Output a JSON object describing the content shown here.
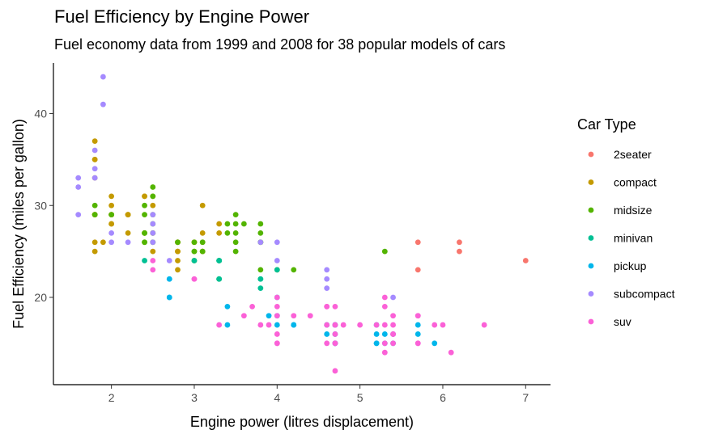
{
  "chart_data": {
    "type": "scatter",
    "title": "Fuel Efficiency by Engine Power",
    "subtitle": "Fuel economy data from 1999 and 2008 for 38 popular models of cars",
    "xlabel": "Engine power (litres displacement)",
    "ylabel": "Fuel Efficiency (miles per gallon)",
    "xlim": [
      1.3,
      7.3
    ],
    "ylim": [
      10.5,
      45.5
    ],
    "x_ticks": [
      2,
      3,
      4,
      5,
      6,
      7
    ],
    "y_ticks": [
      20,
      30,
      40
    ],
    "grid": false,
    "legend": {
      "title": "Car Type",
      "position": "right"
    },
    "series": [
      {
        "name": "2seater",
        "color": "#F8766D",
        "points": [
          [
            5.7,
            26
          ],
          [
            5.7,
            23
          ],
          [
            6.2,
            26
          ],
          [
            6.2,
            25
          ],
          [
            7.0,
            24
          ]
        ]
      },
      {
        "name": "compact",
        "color": "#C49A00",
        "points": [
          [
            1.8,
            29
          ],
          [
            1.8,
            29
          ],
          [
            2.0,
            31
          ],
          [
            2.0,
            30
          ],
          [
            2.8,
            26
          ],
          [
            2.8,
            26
          ],
          [
            3.1,
            27
          ],
          [
            1.8,
            26
          ],
          [
            1.8,
            25
          ],
          [
            2.0,
            28
          ],
          [
            2.0,
            29
          ],
          [
            2.8,
            25
          ],
          [
            2.8,
            25
          ],
          [
            3.1,
            25
          ],
          [
            3.1,
            25
          ],
          [
            2.2,
            27
          ],
          [
            2.2,
            29
          ],
          [
            2.4,
            31
          ],
          [
            2.4,
            31
          ],
          [
            3.0,
            26
          ],
          [
            3.0,
            26
          ],
          [
            3.3,
            28
          ],
          [
            1.8,
            29
          ],
          [
            1.8,
            29
          ],
          [
            2.0,
            28
          ],
          [
            2.0,
            29
          ],
          [
            2.8,
            24
          ],
          [
            2.8,
            23
          ],
          [
            1.9,
            26
          ],
          [
            2.0,
            29
          ],
          [
            2.5,
            31
          ],
          [
            2.5,
            30
          ],
          [
            1.8,
            33
          ],
          [
            1.8,
            35
          ],
          [
            1.8,
            37
          ],
          [
            1.8,
            35
          ],
          [
            2.4,
            27
          ],
          [
            2.4,
            27
          ],
          [
            2.5,
            27
          ],
          [
            2.5,
            25
          ],
          [
            3.3,
            27
          ],
          [
            2.2,
            29
          ],
          [
            2.2,
            29
          ],
          [
            2.8,
            26
          ],
          [
            3.1,
            30
          ],
          [
            3.1,
            26
          ]
        ]
      },
      {
        "name": "midsize",
        "color": "#53B400",
        "points": [
          [
            2.4,
            26
          ],
          [
            2.4,
            29
          ],
          [
            3.1,
            26
          ],
          [
            3.5,
            29
          ],
          [
            3.6,
            28
          ],
          [
            2.4,
            27
          ],
          [
            3.0,
            24
          ],
          [
            3.3,
            24
          ],
          [
            3.3,
            22
          ],
          [
            3.5,
            26
          ],
          [
            3.8,
            26
          ],
          [
            3.8,
            26
          ],
          [
            4.2,
            23
          ],
          [
            2.5,
            32
          ],
          [
            2.5,
            31
          ],
          [
            2.5,
            29
          ],
          [
            2.5,
            28
          ],
          [
            2.5,
            26
          ],
          [
            2.5,
            27
          ],
          [
            2.5,
            26
          ],
          [
            3.0,
            26
          ],
          [
            3.0,
            25
          ],
          [
            3.5,
            25
          ],
          [
            2.4,
            26
          ],
          [
            2.4,
            30
          ],
          [
            2.4,
            27
          ],
          [
            3.0,
            25
          ],
          [
            3.5,
            28
          ],
          [
            3.1,
            25
          ],
          [
            3.8,
            28
          ],
          [
            3.8,
            27
          ],
          [
            3.8,
            26
          ],
          [
            3.8,
            23
          ],
          [
            4.0,
            23
          ],
          [
            5.3,
            25
          ],
          [
            3.4,
            27
          ],
          [
            3.4,
            28
          ],
          [
            3.5,
            27
          ],
          [
            1.8,
            29
          ],
          [
            1.8,
            30
          ],
          [
            2.0,
            29
          ],
          [
            2.8,
            26
          ]
        ]
      },
      {
        "name": "minivan",
        "color": "#00C094",
        "points": [
          [
            2.4,
            24
          ],
          [
            3.0,
            24
          ],
          [
            3.3,
            22
          ],
          [
            3.3,
            24
          ],
          [
            3.3,
            24
          ],
          [
            3.3,
            22
          ],
          [
            3.3,
            24
          ],
          [
            3.8,
            22
          ],
          [
            3.8,
            21
          ],
          [
            3.8,
            22
          ],
          [
            4.0,
            23
          ]
        ]
      },
      {
        "name": "pickup",
        "color": "#00B6EB",
        "points": [
          [
            2.7,
            20
          ],
          [
            2.7,
            22
          ],
          [
            3.4,
            17
          ],
          [
            3.4,
            19
          ],
          [
            3.9,
            18
          ],
          [
            4.7,
            17
          ],
          [
            4.7,
            15
          ],
          [
            5.2,
            17
          ],
          [
            5.2,
            15
          ],
          [
            5.7,
            17
          ],
          [
            5.9,
            15
          ],
          [
            4.7,
            17
          ],
          [
            4.7,
            16
          ],
          [
            4.7,
            15
          ],
          [
            5.2,
            16
          ],
          [
            5.2,
            15
          ],
          [
            5.7,
            16
          ],
          [
            4.2,
            17
          ],
          [
            4.2,
            17
          ],
          [
            4.6,
            16
          ],
          [
            4.6,
            17
          ],
          [
            5.4,
            15
          ],
          [
            5.4,
            16
          ],
          [
            5.3,
            15
          ],
          [
            5.3,
            16
          ],
          [
            2.7,
            22
          ],
          [
            2.7,
            20
          ],
          [
            4.0,
            18
          ],
          [
            4.0,
            17
          ],
          [
            4.7,
            17
          ],
          [
            4.7,
            15
          ],
          [
            4.0,
            20
          ]
        ]
      },
      {
        "name": "subcompact",
        "color": "#A58AFF",
        "points": [
          [
            1.6,
            33
          ],
          [
            1.6,
            32
          ],
          [
            1.6,
            29
          ],
          [
            1.8,
            34
          ],
          [
            1.8,
            36
          ],
          [
            1.8,
            33
          ],
          [
            1.9,
            44
          ],
          [
            1.9,
            41
          ],
          [
            2.0,
            26
          ],
          [
            2.0,
            27
          ],
          [
            2.5,
            29
          ],
          [
            2.5,
            28
          ],
          [
            2.5,
            26
          ],
          [
            2.2,
            26
          ],
          [
            2.7,
            24
          ],
          [
            3.8,
            26
          ],
          [
            4.0,
            26
          ],
          [
            4.0,
            24
          ],
          [
            4.6,
            23
          ],
          [
            4.6,
            22
          ],
          [
            4.6,
            21
          ],
          [
            5.4,
            20
          ],
          [
            2.5,
            27
          ]
        ]
      },
      {
        "name": "suv",
        "color": "#FB61D7",
        "points": [
          [
            4.2,
            18
          ],
          [
            4.4,
            18
          ],
          [
            4.6,
            19
          ],
          [
            4.7,
            19
          ],
          [
            5.3,
            17
          ],
          [
            5.3,
            14
          ],
          [
            5.7,
            15
          ],
          [
            6.5,
            17
          ],
          [
            3.0,
            22
          ],
          [
            3.7,
            19
          ],
          [
            3.9,
            17
          ],
          [
            4.0,
            19
          ],
          [
            4.0,
            18
          ],
          [
            4.7,
            17
          ],
          [
            4.7,
            12
          ],
          [
            5.2,
            17
          ],
          [
            5.7,
            18
          ],
          [
            5.9,
            17
          ],
          [
            5.3,
            20
          ],
          [
            5.3,
            19
          ],
          [
            5.7,
            18
          ],
          [
            6.0,
            17
          ],
          [
            4.6,
            19
          ],
          [
            5.4,
            17
          ],
          [
            5.4,
            18
          ],
          [
            5.4,
            16
          ],
          [
            5.4,
            15
          ],
          [
            4.0,
            15
          ],
          [
            4.0,
            15
          ],
          [
            4.6,
            17
          ],
          [
            4.7,
            17
          ],
          [
            5.0,
            17
          ],
          [
            3.3,
            17
          ],
          [
            3.6,
            18
          ],
          [
            3.8,
            17
          ],
          [
            4.6,
            15
          ],
          [
            4.7,
            15
          ],
          [
            4.0,
            20
          ],
          [
            6.1,
            14
          ],
          [
            2.5,
            24
          ],
          [
            2.5,
            23
          ],
          [
            3.0,
            22
          ],
          [
            5.3,
            15
          ],
          [
            5.7,
            15
          ],
          [
            4.0,
            16
          ],
          [
            4.7,
            16
          ],
          [
            4.7,
            15
          ],
          [
            4.8,
            17
          ],
          [
            5.4,
            16
          ]
        ]
      }
    ]
  }
}
